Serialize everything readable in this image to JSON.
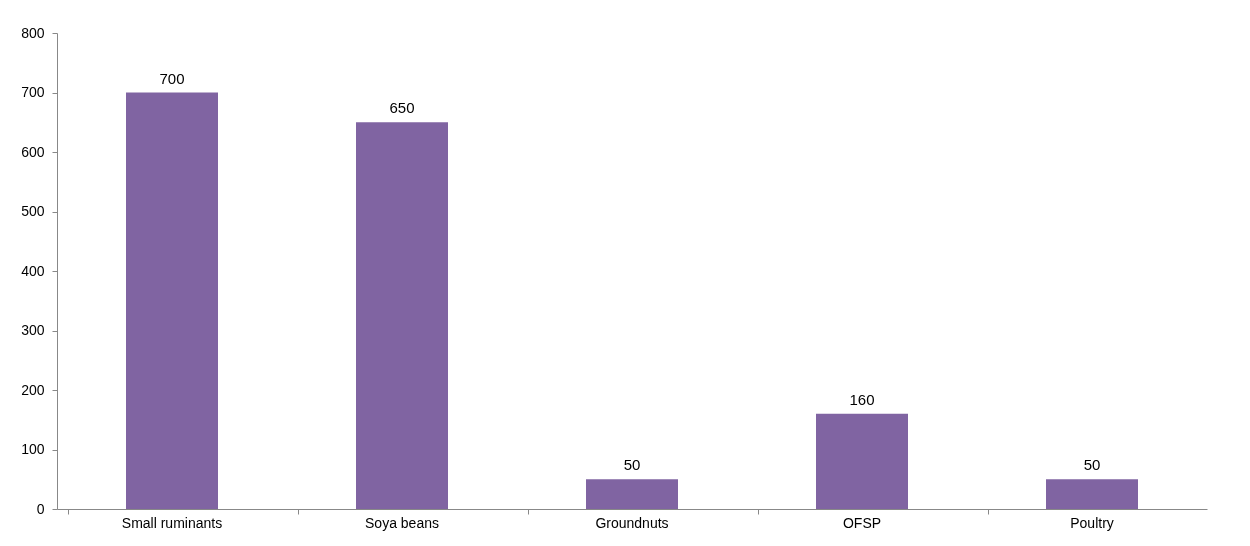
{
  "chart_data": {
    "type": "bar",
    "categories": [
      "Small ruminants",
      "Soya beans",
      "Groundnuts",
      "OFSP",
      "Poultry"
    ],
    "values": [
      700,
      650,
      50,
      160,
      50
    ],
    "color": "#8064a2",
    "ylim": [
      0,
      800
    ],
    "yticks": [
      0,
      100,
      200,
      300,
      400,
      500,
      600,
      700,
      800
    ],
    "grid": false,
    "data_labels": true
  }
}
